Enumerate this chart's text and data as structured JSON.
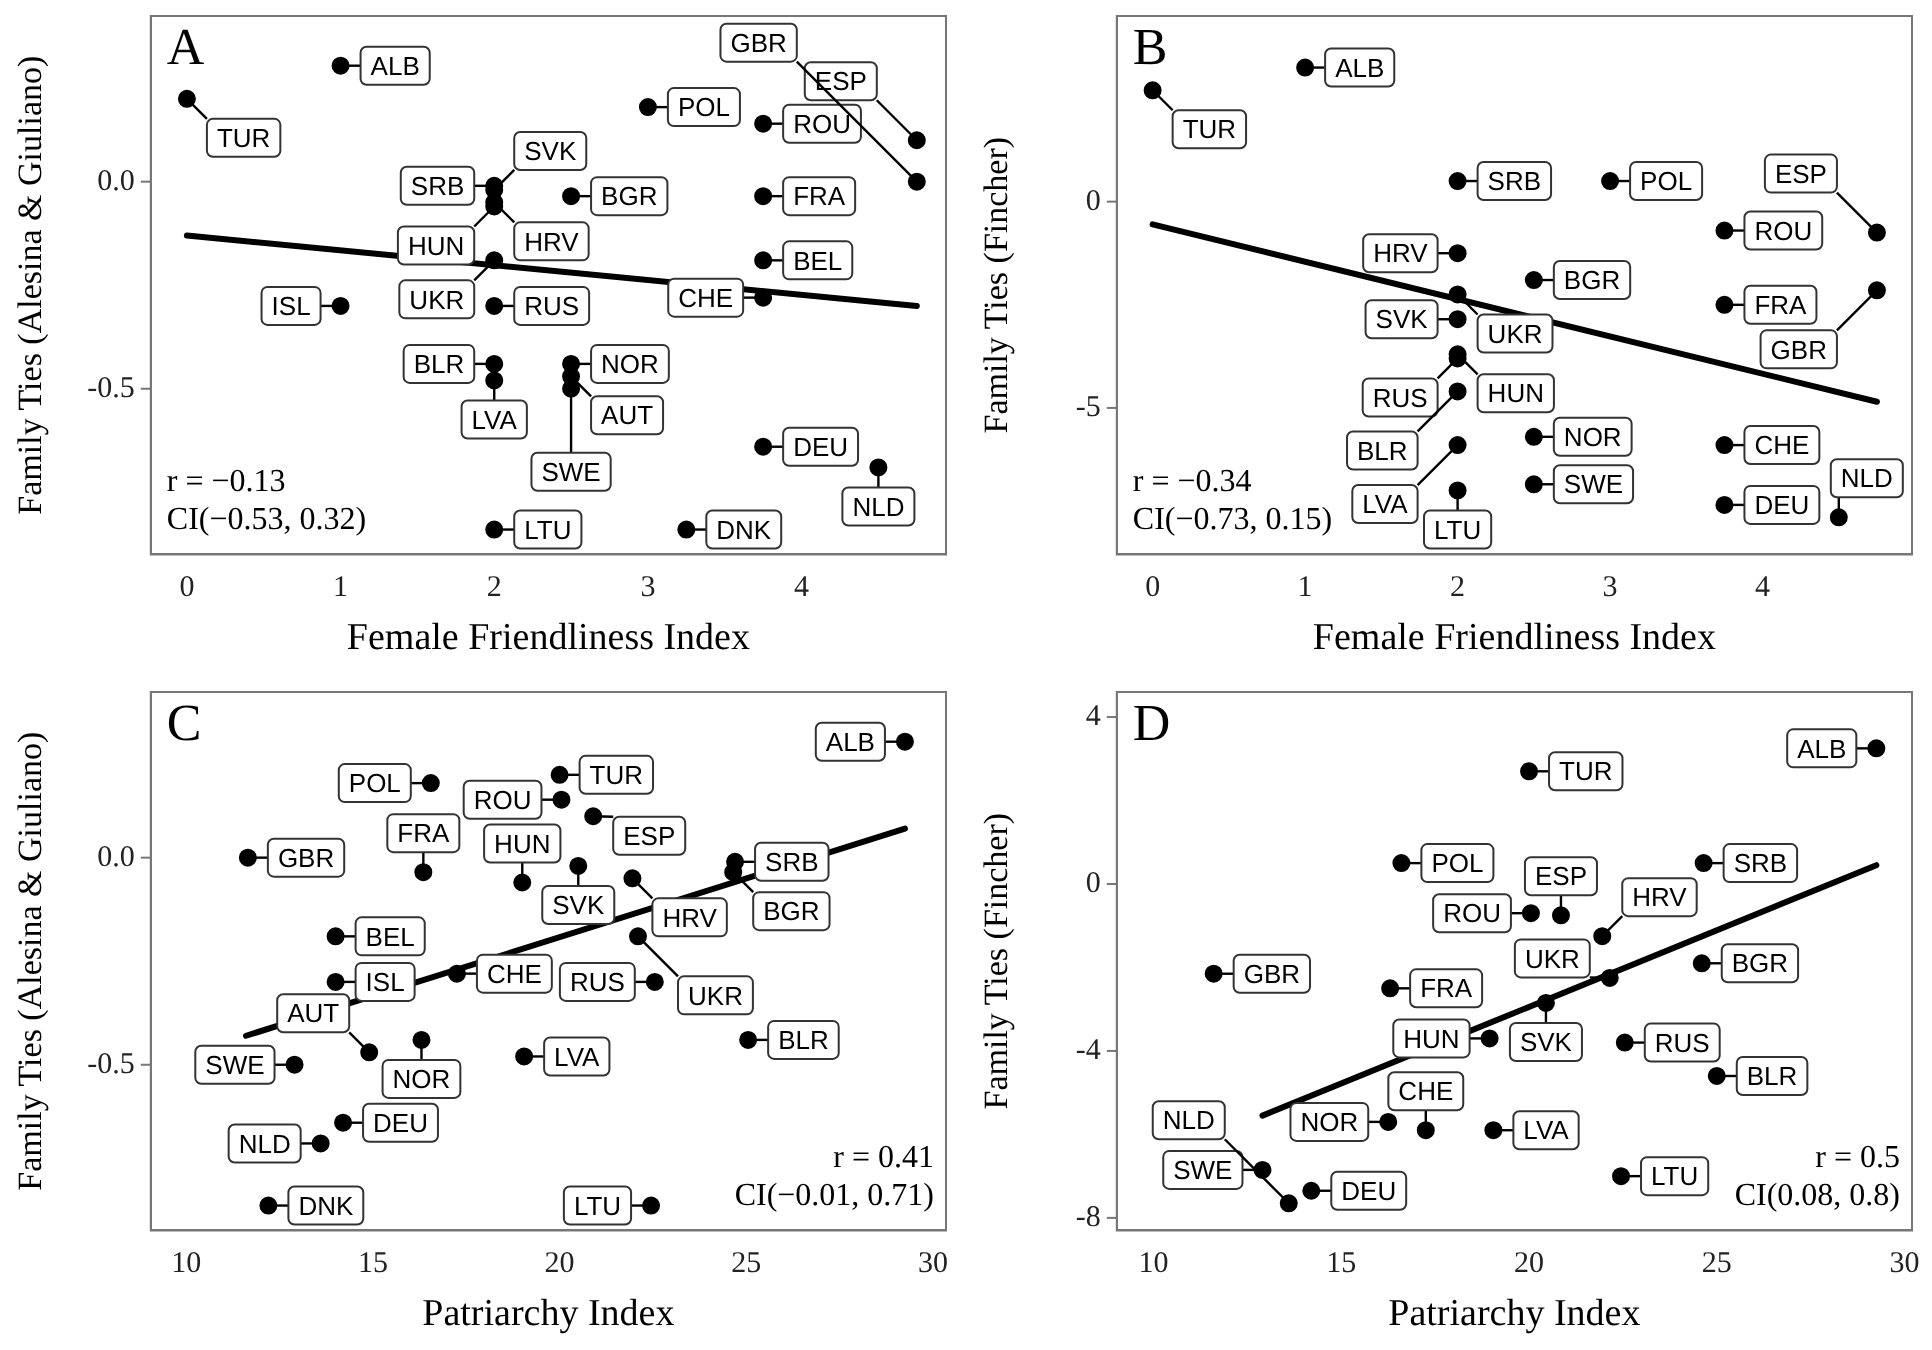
{
  "chart_data": [
    {
      "type": "scatter",
      "xlabel": "Female Friendliness Index",
      "ylabel": "Family Ties (Alesina & Giuliano)",
      "annotations": [
        "A",
        "r = −0.13",
        "CI(−0.53, 0.32)"
      ],
      "xlim": [
        -0.235,
        4.94
      ],
      "ylim": [
        -0.9,
        0.4
      ],
      "xticks": [
        0,
        1,
        2,
        3,
        4
      ],
      "yticks": [
        -0.5,
        {
          "value": 0,
          "label": "0.0"
        }
      ],
      "grid": false,
      "marker": "circle",
      "series": [
        {
          "type": "scatter",
          "color": "#000000",
          "x": [
            0,
            1,
            2,
            2,
            2,
            2,
            2,
            2,
            2,
            2,
            2,
            1,
            3,
            2.5,
            2.5,
            2.5,
            2.5,
            3.25,
            3.75,
            3.75,
            3.75,
            3.75,
            3.75,
            4.75,
            4.75,
            4.5
          ],
          "values": [
            0.2,
            0.28,
            -0.01,
            -0.02,
            -0.05,
            -0.06,
            -0.3,
            -0.19,
            -0.44,
            -0.48,
            -0.84,
            -0.3,
            0.18,
            -0.035,
            -0.44,
            -0.47,
            -0.5,
            -0.84,
            0.14,
            -0.035,
            -0.19,
            -0.28,
            -0.64,
            0.1,
            0.0,
            -0.69
          ],
          "value_labels": [
            "TUR",
            "ALB",
            "SRB",
            "SVK",
            "HRV",
            "HUN",
            "RUS",
            "UKR",
            "BLR",
            "LVA",
            "LTU",
            "ISL",
            "POL",
            "BGR",
            "NOR",
            "AUT",
            "SWE",
            "DNK",
            "ROU",
            "FRA",
            "BEL",
            "CHE",
            "DEU",
            "ESP",
            "GBR",
            "NLD"
          ]
        },
        {
          "type": "line",
          "color": "#000000",
          "marker": "none",
          "x": [
            0,
            4.75
          ],
          "values": [
            -0.13,
            -0.3
          ]
        }
      ]
    },
    {
      "type": "scatter",
      "xlabel": "Female Friendliness Index",
      "ylabel": "Family Ties (Fincher)",
      "annotations": [
        "B",
        "r = −0.34",
        "CI(−0.73, 0.15)"
      ],
      "xlim": [
        -0.235,
        4.98
      ],
      "ylim": [
        -8.55,
        4.5
      ],
      "xticks": [
        0,
        1,
        2,
        3,
        4
      ],
      "yticks": [
        -5,
        0
      ],
      "grid": false,
      "marker": "circle",
      "series": [
        {
          "type": "scatter",
          "color": "#000000",
          "x": [
            0,
            1,
            2,
            3,
            2,
            2,
            2,
            2,
            2,
            2,
            2,
            2,
            2.5,
            2.5,
            2.5,
            3.75,
            3.75,
            3.75,
            3.75,
            4.75,
            4.75,
            4.5
          ],
          "values": [
            2.7,
            3.25,
            0.5,
            0.5,
            -1.25,
            -2.25,
            -2.85,
            -3.7,
            -3.8,
            -4.6,
            -5.9,
            -7.0,
            -1.9,
            -5.7,
            -6.85,
            -0.7,
            -2.5,
            -5.9,
            -7.35,
            -0.75,
            -2.15,
            -7.65
          ],
          "value_labels": [
            "TUR",
            "ALB",
            "SRB",
            "POL",
            "HRV",
            "UKR",
            "SVK",
            "HUN",
            "RUS",
            "BLR",
            "LVA",
            "LTU",
            "BGR",
            "NOR",
            "SWE",
            "ROU",
            "FRA",
            "CHE",
            "DEU",
            "ESP",
            "GBR",
            "NLD"
          ]
        },
        {
          "type": "line",
          "color": "#000000",
          "marker": "none",
          "x": [
            0,
            4.75
          ],
          "values": [
            -0.55,
            -4.85
          ]
        }
      ]
    },
    {
      "type": "scatter",
      "xlabel": "Patriarchy Index",
      "ylabel": "Family Ties (Alesina & Giuliano)",
      "annotations": [
        "C",
        "r = 0.41",
        "CI(−0.01, 0.71)"
      ],
      "xlim": [
        9.05,
        30.35
      ],
      "ylim": [
        -0.9,
        0.4
      ],
      "xticks": [
        10,
        15,
        20,
        25,
        30
      ],
      "yticks": [
        -0.5,
        {
          "value": 0,
          "label": "0.0"
        }
      ],
      "grid": false,
      "marker": "circle",
      "series": [
        {
          "type": "scatter",
          "color": "#000000",
          "x": [
            29.25,
            20.0,
            20.05,
            16.55,
            20.9,
            11.65,
            16.35,
            20.5,
            19.0,
            21.95,
            24.7,
            24.65,
            14.0,
            14.0,
            17.25,
            22.1,
            22.55,
            25.05,
            16.3,
            19.05,
            12.9,
            14.9,
            14.2,
            13.6,
            12.2,
            22.45
          ],
          "values": [
            0.28,
            0.2,
            0.14,
            0.18,
            0.1,
            0.0,
            -0.035,
            -0.02,
            -0.06,
            -0.05,
            -0.01,
            -0.035,
            -0.19,
            -0.3,
            -0.28,
            -0.19,
            -0.3,
            -0.44,
            -0.44,
            -0.48,
            -0.5,
            -0.47,
            -0.64,
            -0.69,
            -0.84,
            -0.84
          ],
          "value_labels": [
            "ALB",
            "TUR",
            "ROU",
            "POL",
            "ESP",
            "GBR",
            "FRA",
            "SVK",
            "HUN",
            "HRV",
            "SRB",
            "BGR",
            "BEL",
            "ISL",
            "CHE",
            "UKR",
            "RUS",
            "BLR",
            "NOR",
            "LVA",
            "SWE",
            "AUT",
            "DEU",
            "NLD",
            "DNK",
            "LTU"
          ]
        },
        {
          "type": "line",
          "color": "#000000",
          "marker": "none",
          "x": [
            11.6,
            29.25
          ],
          "values": [
            -0.43,
            0.07
          ]
        }
      ]
    },
    {
      "type": "scatter",
      "xlabel": "Patriarchy Index",
      "ylabel": "Family Ties (Fincher)",
      "annotations": [
        "D",
        "r = 0.5",
        "CI(0.08, 0.8)"
      ],
      "xlim": [
        9.02,
        30.2
      ],
      "ylim": [
        -8.3,
        4.6
      ],
      "xticks": [
        10,
        15,
        20,
        25,
        30
      ],
      "yticks": [
        -8,
        -4,
        0,
        4
      ],
      "grid": false,
      "marker": "circle",
      "series": [
        {
          "type": "scatter",
          "color": "#000000",
          "x": [
            29.25,
            20.0,
            16.6,
            24.65,
            20.05,
            20.85,
            21.95,
            11.6,
            24.6,
            16.3,
            22.15,
            20.45,
            18.95,
            22.55,
            25.0,
            16.25,
            17.25,
            19.05,
            12.9,
            14.2,
            13.6,
            22.45
          ],
          "values": [
            3.25,
            2.7,
            0.5,
            0.5,
            -0.7,
            -0.75,
            -1.25,
            -2.15,
            -1.9,
            -2.5,
            -2.25,
            -2.85,
            -3.7,
            -3.8,
            -4.6,
            -5.7,
            -5.9,
            -5.9,
            -6.85,
            -7.35,
            -7.65,
            -7.0
          ],
          "value_labels": [
            "ALB",
            "TUR",
            "POL",
            "SRB",
            "ROU",
            "ESP",
            "HRV",
            "GBR",
            "BGR",
            "FRA",
            "UKR",
            "SVK",
            "HUN",
            "RUS",
            "BLR",
            "NOR",
            "CHE",
            "LVA",
            "SWE",
            "DEU",
            "NLD",
            "LTU"
          ]
        },
        {
          "type": "line",
          "color": "#000000",
          "marker": "none",
          "x": [
            12.9,
            29.25
          ],
          "values": [
            -5.55,
            0.45
          ]
        }
      ]
    }
  ]
}
